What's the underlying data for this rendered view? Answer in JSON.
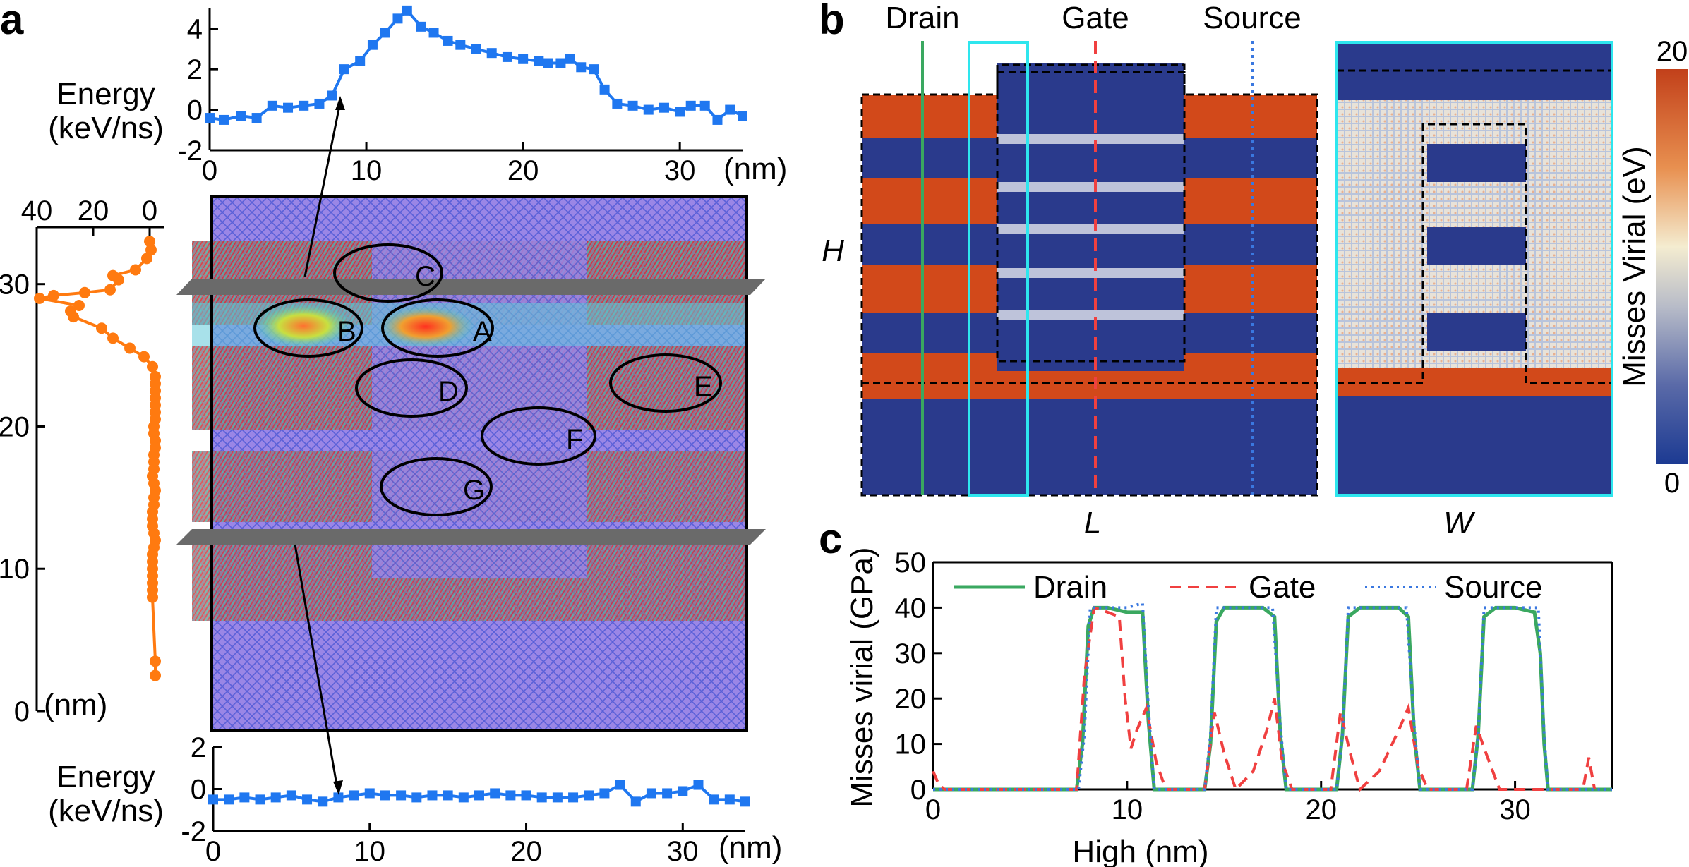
{
  "colors": {
    "energy_blue": "#1f77f0",
    "energy_orange": "#ff7a10",
    "heat_red": "#d2491a",
    "heat_blue": "#2a3a8c",
    "cyan": "#2ee6ee",
    "drain_green": "#3aa860",
    "gate_red": "#f04040",
    "source_blue": "#3a78e0"
  },
  "panels": {
    "a": {
      "label": "a",
      "units": "(nm)"
    },
    "b": {
      "label": "b",
      "drain": "Drain",
      "gate": "Gate",
      "source": "Source",
      "axis_h": "H",
      "axis_l": "L",
      "axis_w": "W",
      "colorbar_label": "Misses Virial (eV)",
      "colorbar_max": "20",
      "colorbar_min": "0"
    },
    "c": {
      "label": "c"
    }
  },
  "regions": [
    "A",
    "B",
    "C",
    "D",
    "E",
    "F",
    "G"
  ],
  "chart_data": [
    {
      "id": "energy_top",
      "type": "line",
      "ylabel_line1": "Energy",
      "ylabel_line2": "(keV/ns)",
      "xlim": [
        0,
        34
      ],
      "ylim": [
        -2,
        5
      ],
      "xticks": [
        "0",
        "10",
        "20",
        "30"
      ],
      "xtick_values": [
        0,
        10,
        20,
        30
      ],
      "yticks": [
        "-2",
        "0",
        "2",
        "4"
      ],
      "ytick_values": [
        -2,
        0,
        2,
        4
      ],
      "xunit": "(nm)",
      "x": [
        0,
        0.9,
        2,
        3,
        4,
        5,
        6,
        7,
        7.8,
        8.6,
        9.6,
        10.4,
        11.2,
        12,
        12.6,
        13.5,
        14.3,
        15.2,
        16,
        17,
        18,
        19,
        20,
        21,
        21.6,
        22.4,
        23,
        23.7,
        24.5,
        25.2,
        26,
        27,
        28,
        29,
        30,
        30.7,
        31.6,
        32.4,
        33.2,
        34
      ],
      "y": [
        -0.4,
        -0.5,
        -0.3,
        -0.4,
        0.2,
        0.1,
        0.2,
        0.3,
        0.7,
        2.0,
        2.4,
        3.2,
        3.8,
        4.5,
        4.9,
        4.1,
        3.8,
        3.4,
        3.2,
        3.0,
        2.8,
        2.6,
        2.5,
        2.4,
        2.3,
        2.3,
        2.5,
        2.1,
        2.0,
        1.0,
        0.3,
        0.2,
        0.0,
        0.1,
        -0.1,
        0.2,
        0.2,
        -0.5,
        0.0,
        -0.3
      ]
    },
    {
      "id": "energy_bottom",
      "type": "line",
      "ylabel_line1": "Energy",
      "ylabel_line2": "(keV/ns)",
      "xlim": [
        0,
        34
      ],
      "ylim": [
        -2,
        2
      ],
      "xticks": [
        "0",
        "10",
        "20",
        "30"
      ],
      "xtick_values": [
        0,
        10,
        20,
        30
      ],
      "yticks": [
        "-2",
        "0",
        "2"
      ],
      "ytick_values": [
        -2,
        0,
        2
      ],
      "xunit": "(nm)",
      "x": [
        0,
        1,
        2,
        3,
        4,
        5,
        6,
        7,
        8,
        9,
        10,
        11,
        12,
        13,
        14,
        15,
        16,
        17,
        18,
        19,
        20,
        21,
        22,
        23,
        24,
        25,
        26,
        27,
        28,
        29,
        30,
        31,
        32,
        33,
        34
      ],
      "y": [
        -0.5,
        -0.5,
        -0.4,
        -0.5,
        -0.4,
        -0.3,
        -0.5,
        -0.6,
        -0.4,
        -0.3,
        -0.2,
        -0.3,
        -0.3,
        -0.4,
        -0.3,
        -0.3,
        -0.4,
        -0.3,
        -0.2,
        -0.3,
        -0.3,
        -0.4,
        -0.4,
        -0.4,
        -0.3,
        -0.2,
        0.2,
        -0.6,
        -0.2,
        -0.2,
        -0.1,
        0.2,
        -0.5,
        -0.5,
        -0.6
      ]
    },
    {
      "id": "energy_side",
      "type": "line",
      "xlim": [
        40,
        -5
      ],
      "ylim": [
        0,
        34
      ],
      "xticks": [
        "40",
        "20",
        "0"
      ],
      "xtick_values": [
        40,
        20,
        0
      ],
      "yticks": [
        "0",
        "10",
        "20",
        "30"
      ],
      "ytick_values": [
        0,
        10,
        20,
        30
      ],
      "yunit": "(nm)",
      "x": [
        0,
        -0.5,
        1,
        5,
        13,
        11,
        14,
        23,
        34,
        39,
        25,
        28,
        27,
        17,
        13,
        7,
        2,
        -1,
        -2,
        -2,
        -2,
        -2,
        -2,
        -2,
        -2,
        -1.5,
        -1.5,
        -2,
        -2,
        -1.5,
        -1.5,
        -1.5,
        -1,
        -1.5,
        -2,
        -1.5,
        -1.5,
        -1,
        -1,
        -1,
        -1.5,
        -2,
        -1.5,
        -1,
        -1,
        -1,
        -1,
        -1,
        -1,
        -1,
        -2,
        -2
      ],
      "y": [
        33,
        32.4,
        31.8,
        31,
        30.6,
        30.3,
        29.6,
        29.4,
        29.2,
        29.0,
        28.5,
        28.1,
        27.7,
        26.9,
        26.2,
        25.5,
        24.9,
        24.2,
        23.5,
        23.0,
        22.5,
        22,
        21.5,
        21,
        20.5,
        20,
        19.5,
        19,
        18.5,
        18,
        17.5,
        17,
        16.5,
        16,
        15.5,
        15,
        14.5,
        14,
        13.5,
        13,
        12.5,
        12,
        11.5,
        11,
        10.5,
        10,
        9.5,
        9,
        8.5,
        8,
        3.5,
        2.5
      ]
    },
    {
      "id": "misses_virial",
      "type": "line",
      "xlabel": "High (nm)",
      "ylabel": "Misses virial (GPa)",
      "xlim": [
        0,
        35
      ],
      "ylim": [
        0,
        50
      ],
      "xticks": [
        "0",
        "10",
        "20",
        "30"
      ],
      "xtick_values": [
        0,
        10,
        20,
        30
      ],
      "yticks": [
        "0",
        "10",
        "20",
        "30",
        "40",
        "50"
      ],
      "ytick_values": [
        0,
        10,
        20,
        30,
        40,
        50
      ],
      "legend": "top-left",
      "series": [
        {
          "name": "Drain",
          "style": "solid",
          "x": [
            0,
            7.4,
            7.7,
            8.0,
            8.3,
            9.0,
            10.0,
            10.8,
            11.1,
            11.4,
            14.0,
            14.3,
            14.6,
            15.0,
            16.0,
            17.0,
            17.6,
            17.9,
            18.2,
            20.8,
            21.1,
            21.4,
            22.0,
            23.0,
            24.0,
            24.5,
            24.8,
            25.1,
            27.8,
            28.1,
            28.4,
            29.0,
            30.0,
            31.0,
            31.3,
            31.5,
            31.7,
            35
          ],
          "y": [
            0,
            0,
            10,
            36,
            40,
            40,
            39,
            39,
            15,
            0,
            0,
            10,
            37,
            40,
            40,
            40,
            38,
            12,
            0,
            0,
            12,
            38,
            40,
            40,
            40,
            38,
            12,
            0,
            0,
            12,
            38,
            40,
            40,
            39,
            30,
            10,
            0,
            0
          ]
        },
        {
          "name": "Gate",
          "style": "dashed",
          "x": [
            0,
            0.3,
            0.6,
            7.4,
            7.8,
            8.3,
            9.0,
            9.6,
            9.9,
            10.2,
            10.5,
            11.0,
            11.5,
            12.0,
            14.0,
            14.5,
            15.0,
            15.6,
            16.5,
            17.2,
            17.6,
            18.0,
            18.5,
            20.5,
            21.0,
            21.5,
            22.0,
            23.0,
            24.0,
            24.5,
            25.0,
            25.5,
            27.5,
            28.0,
            28.5,
            29.2,
            30.0,
            33.5,
            33.8,
            34.1
          ],
          "y": [
            4,
            1,
            0,
            0,
            25,
            40,
            39,
            38,
            20,
            9,
            13,
            18,
            6,
            0,
            0,
            17,
            8,
            0,
            4,
            13,
            20,
            6,
            0,
            0,
            17,
            8,
            0,
            4,
            13,
            18,
            5,
            0,
            0,
            14,
            8,
            0,
            0,
            0,
            7,
            0
          ]
        },
        {
          "name": "Source",
          "style": "dotted",
          "x": [
            0,
            7.5,
            7.8,
            8.1,
            9.0,
            10.0,
            10.8,
            11.1,
            11.4,
            14.0,
            14.3,
            14.6,
            16.0,
            17.5,
            17.9,
            18.2,
            20.8,
            21.1,
            21.4,
            22.5,
            24.4,
            24.8,
            25.1,
            27.8,
            28.1,
            28.4,
            30.0,
            31.2,
            31.5,
            31.7,
            35
          ],
          "y": [
            0,
            0,
            12,
            40,
            40,
            40,
            41,
            18,
            0,
            0,
            12,
            40,
            40,
            40,
            14,
            0,
            0,
            12,
            40,
            40,
            40,
            14,
            0,
            0,
            12,
            40,
            40,
            40,
            12,
            0,
            0
          ]
        }
      ]
    }
  ]
}
